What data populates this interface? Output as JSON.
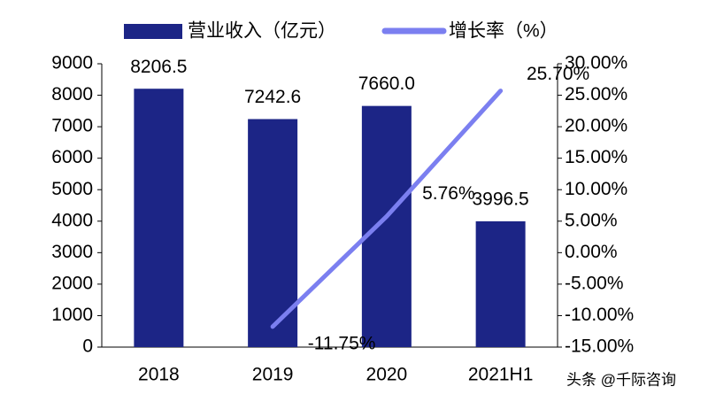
{
  "chart_data": {
    "type": "bar-line",
    "categories": [
      "2018",
      "2019",
      "2020",
      "2021H1"
    ],
    "series": [
      {
        "name": "营业收入（亿元）",
        "type": "bar",
        "color": "#1c2586",
        "values": [
          8206.5,
          7242.6,
          7660.0,
          3996.5
        ],
        "value_labels": [
          "8206.5",
          "7242.6",
          "7660.0",
          "3996.5"
        ]
      },
      {
        "name": "增长率（%）",
        "type": "line",
        "axis": "y2",
        "color": "#7b7ff0",
        "values": [
          null,
          -11.75,
          5.76,
          25.7
        ],
        "value_labels": [
          null,
          "-11.75%",
          "5.76%",
          "25.70%"
        ]
      }
    ],
    "ylim": [
      0,
      9000
    ],
    "yticks": [
      0,
      1000,
      2000,
      3000,
      4000,
      5000,
      6000,
      7000,
      8000,
      9000
    ],
    "y2lim": [
      -15,
      30
    ],
    "y2ticks": [
      {
        "value": -15,
        "label": "-15.00%"
      },
      {
        "value": -10,
        "label": "-10.00%"
      },
      {
        "value": -5,
        "label": "-5.00%"
      },
      {
        "value": 0,
        "label": "0.00%"
      },
      {
        "value": 5,
        "label": "5.00%"
      },
      {
        "value": 10,
        "label": "10.00%"
      },
      {
        "value": 15,
        "label": "15.00%"
      },
      {
        "value": 20,
        "label": "20.00%"
      },
      {
        "value": 25,
        "label": "25.00%"
      },
      {
        "value": 30,
        "label": "30.00%"
      }
    ],
    "legend": "top",
    "watermark": "头条 @千际咨询"
  }
}
